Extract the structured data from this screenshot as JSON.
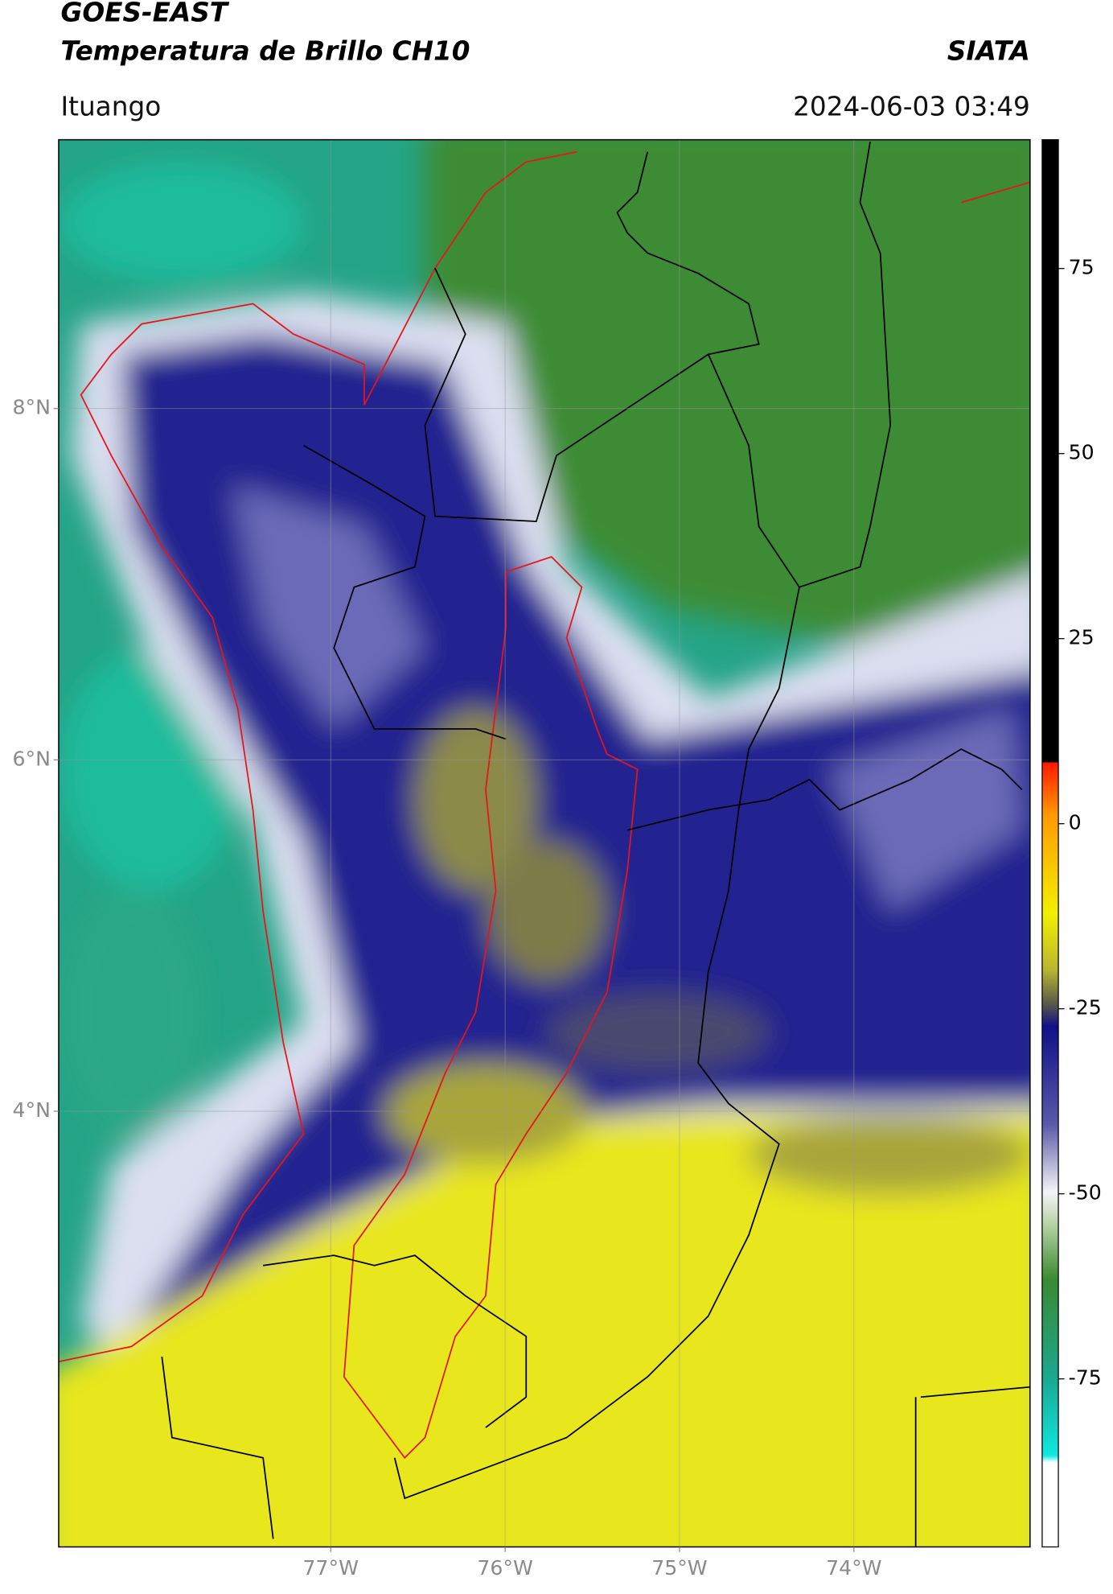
{
  "header": {
    "title": "GOES-EAST",
    "subtitle": "Temperatura de Brillo CH10",
    "agency": "SIATA",
    "location": "Ituango",
    "timestamp": "2024-06-03 03:49"
  },
  "map": {
    "xlim": [
      -78.56,
      -72.99
    ],
    "ylim": [
      1.52,
      9.53
    ],
    "xticks": [
      {
        "value": -77,
        "label": "77°W"
      },
      {
        "value": -76,
        "label": "76°W"
      },
      {
        "value": -75,
        "label": "75°W"
      },
      {
        "value": -74,
        "label": "74°W"
      }
    ],
    "yticks": [
      {
        "value": 8,
        "label": "8°N"
      },
      {
        "value": 6,
        "label": "6°N"
      },
      {
        "value": 4,
        "label": "4°N"
      }
    ],
    "grid": true
  },
  "colorbar": {
    "lim": [
      -97.7,
      92.4
    ],
    "ticks": [
      75,
      50,
      25,
      0,
      -25,
      -50,
      -75
    ]
  }
}
